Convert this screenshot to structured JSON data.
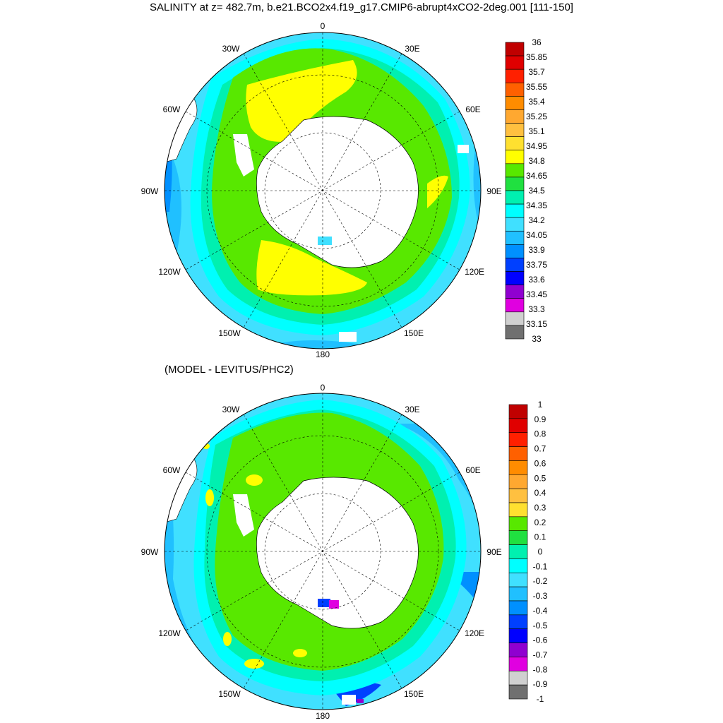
{
  "title": "SALINITY at z= 482.7m, b.e21.BCO2x4.f19_g17.CMIP6-abrupt4xCO2-2deg.001 [111-150]",
  "subtitle": "(MODEL - LEVITUS/PHC2)",
  "lon_labels": [
    "0",
    "30E",
    "60E",
    "90E",
    "120E",
    "150E",
    "180",
    "150W",
    "120W",
    "90W",
    "60W",
    "30W"
  ],
  "colors": {
    "land": "#ffffff",
    "coast": "#000000",
    "grid": "#000000"
  },
  "panel1": {
    "name": "salinity",
    "colorbar_labels": [
      "36",
      "35.85",
      "35.7",
      "35.55",
      "35.4",
      "35.25",
      "35.1",
      "34.95",
      "34.8",
      "34.65",
      "34.5",
      "34.35",
      "34.2",
      "34.05",
      "33.9",
      "33.75",
      "33.6",
      "33.45",
      "33.3",
      "33.15",
      "33"
    ],
    "colorbar_colors": [
      "#c00000",
      "#e00000",
      "#ff2000",
      "#ff6000",
      "#ff8c00",
      "#ffa830",
      "#ffc040",
      "#ffe030",
      "#ffff00",
      "#58e800",
      "#20e040",
      "#00f0b0",
      "#00ffff",
      "#40e0ff",
      "#20c0ff",
      "#0090ff",
      "#0040ff",
      "#0000ff",
      "#9000d0",
      "#e000e0",
      "#d0d0d0",
      "#707070"
    ]
  },
  "panel2": {
    "name": "difference",
    "colorbar_labels": [
      "1",
      "0.9",
      "0.8",
      "0.7",
      "0.6",
      "0.5",
      "0.4",
      "0.3",
      "0.2",
      "0.1",
      "0",
      "-0.1",
      "-0.2",
      "-0.3",
      "-0.4",
      "-0.5",
      "-0.6",
      "-0.7",
      "-0.8",
      "-0.9",
      "-1"
    ],
    "colorbar_colors": [
      "#c00000",
      "#e00000",
      "#ff2000",
      "#ff6000",
      "#ff8c00",
      "#ffa830",
      "#ffc040",
      "#ffe030",
      "#58e800",
      "#20e040",
      "#00f0b0",
      "#00ffff",
      "#40e0ff",
      "#20c0ff",
      "#0090ff",
      "#0040ff",
      "#0000ff",
      "#9000d0",
      "#e000e0",
      "#d0d0d0",
      "#707070"
    ]
  }
}
